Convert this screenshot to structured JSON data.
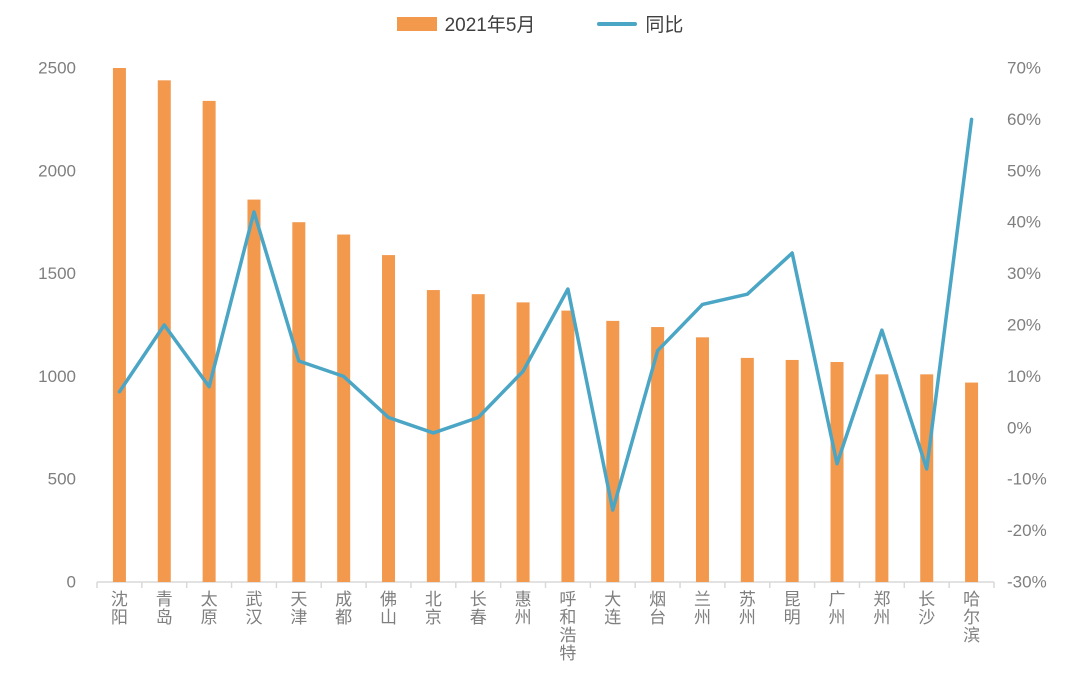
{
  "chart_data": {
    "type": "combo-bar-line",
    "title": "",
    "categories": [
      "沈阳",
      "青岛",
      "太原",
      "武汉",
      "天津",
      "成都",
      "佛山",
      "北京",
      "长春",
      "惠州",
      "呼和浩特",
      "大连",
      "烟台",
      "兰州",
      "苏州",
      "昆明",
      "广州",
      "郑州",
      "长沙",
      "哈尔滨"
    ],
    "series": [
      {
        "name": "2021年5月",
        "type": "bar",
        "axis": "left",
        "color": "#F2994E",
        "values": [
          2500,
          2440,
          2340,
          1860,
          1750,
          1690,
          1590,
          1420,
          1400,
          1360,
          1320,
          1270,
          1240,
          1190,
          1090,
          1080,
          1070,
          1010,
          1010,
          970
        ]
      },
      {
        "name": "同比",
        "type": "line",
        "axis": "right",
        "color": "#4BA6C5",
        "values": [
          7,
          20,
          8,
          42,
          13,
          10,
          2,
          -1,
          2,
          11,
          27,
          -16,
          15,
          24,
          26,
          34,
          -7,
          19,
          -8,
          60
        ]
      }
    ],
    "left_axis": {
      "min": 0,
      "max": 2500,
      "step": 500,
      "labels": [
        "0",
        "500",
        "1000",
        "1500",
        "2000",
        "2500"
      ]
    },
    "right_axis": {
      "min": -30,
      "max": 70,
      "step": 10,
      "labels": [
        "-30%",
        "-20%",
        "-10%",
        "0%",
        "10%",
        "20%",
        "30%",
        "40%",
        "50%",
        "60%",
        "70%"
      ]
    },
    "grid": false,
    "legend_position": "top-center",
    "background": "#FFFFFF",
    "axis_line_color": "#D9D9D9",
    "axis_label_color": "#7F7F7F"
  }
}
